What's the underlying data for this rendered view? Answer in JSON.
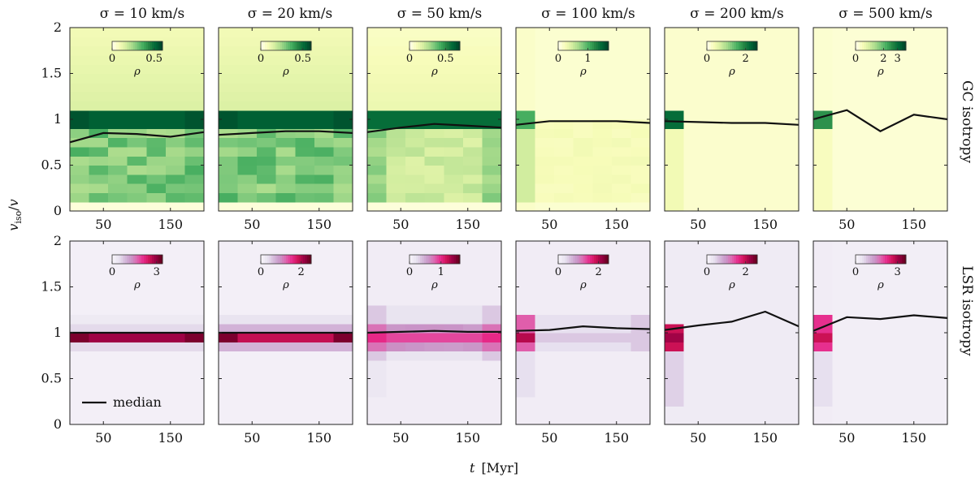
{
  "figure": {
    "xlabel": "t  [Myr]",
    "ylabel": "v_iso / v",
    "column_titles": [
      "σ = 10 km/s",
      "σ = 20 km/s",
      "σ = 50 km/s",
      "σ = 100 km/s",
      "σ = 200 km/s",
      "σ = 500 km/s"
    ],
    "row_labels": [
      "GC isotropy",
      "LSR isotropy"
    ],
    "legend_label": "median",
    "colorbar_label": "ρ"
  },
  "chart_data": {
    "type": "heatmap",
    "x_range": [
      0,
      200
    ],
    "y_range": [
      0,
      2
    ],
    "x_ticks": [
      50,
      150
    ],
    "y_ticks": [
      0,
      0.5,
      1,
      1.5,
      2
    ],
    "y_tick_labels": [
      "0",
      "0.5",
      "1",
      "1.5",
      "2"
    ],
    "colormaps": {
      "GC isotropy": [
        "#ffffe5",
        "#f7fcb9",
        "#d9f0a3",
        "#addd8e",
        "#78c679",
        "#41ab5d",
        "#238443",
        "#006837",
        "#004529"
      ],
      "LSR isotropy": [
        "#f7f4f9",
        "#e7e1ef",
        "#d4b9da",
        "#c994c7",
        "#df65b0",
        "#e7298a",
        "#ce1256",
        "#980043",
        "#67001f"
      ]
    },
    "median_t": [
      0,
      50,
      100,
      150,
      200
    ],
    "rows": [
      {
        "label": "GC isotropy",
        "panels": [
          {
            "sigma": "σ = 10 km/s",
            "cbar_ticks": [
              "0",
              "0.5"
            ],
            "cbar_max": 0.6,
            "median": [
              0.75,
              0.85,
              0.84,
              0.81,
              0.86
            ]
          },
          {
            "sigma": "σ = 20 km/s",
            "cbar_ticks": [
              "0",
              "0.5"
            ],
            "cbar_max": 0.6,
            "median": [
              0.83,
              0.85,
              0.87,
              0.87,
              0.85
            ]
          },
          {
            "sigma": "σ = 50 km/s",
            "cbar_ticks": [
              "0",
              "0.5"
            ],
            "cbar_max": 0.7,
            "median": [
              0.86,
              0.91,
              0.95,
              0.93,
              0.91
            ]
          },
          {
            "sigma": "σ = 100 km/s",
            "cbar_ticks": [
              "0",
              "1"
            ],
            "cbar_max": 1.7,
            "median": [
              0.94,
              0.98,
              0.98,
              0.98,
              0.96
            ]
          },
          {
            "sigma": "σ = 200 km/s",
            "cbar_ticks": [
              "0",
              "2"
            ],
            "cbar_max": 2.6,
            "median": [
              0.98,
              0.97,
              0.96,
              0.96,
              0.94
            ]
          },
          {
            "sigma": "σ = 500 km/s",
            "cbar_ticks": [
              "0",
              "2",
              "3"
            ],
            "cbar_max": 3.6,
            "median": [
              1.0,
              1.1,
              0.87,
              1.05,
              1.0
            ]
          }
        ]
      },
      {
        "label": "LSR isotropy",
        "panels": [
          {
            "sigma": "σ = 10 km/s",
            "cbar_ticks": [
              "0",
              "3"
            ],
            "cbar_max": 3.4,
            "median": [
              1.0,
              1.0,
              1.0,
              1.0,
              1.0
            ]
          },
          {
            "sigma": "σ = 20 km/s",
            "cbar_ticks": [
              "0",
              "2"
            ],
            "cbar_max": 2.5,
            "median": [
              1.0,
              1.0,
              1.0,
              1.0,
              1.0
            ]
          },
          {
            "sigma": "σ = 50 km/s",
            "cbar_ticks": [
              "0",
              "1"
            ],
            "cbar_max": 1.6,
            "median": [
              1.0,
              1.01,
              1.02,
              1.01,
              1.01
            ]
          },
          {
            "sigma": "σ = 100 km/s",
            "cbar_ticks": [
              "0",
              "2"
            ],
            "cbar_max": 2.5,
            "median": [
              1.02,
              1.03,
              1.07,
              1.05,
              1.04
            ]
          },
          {
            "sigma": "σ = 200 km/s",
            "cbar_ticks": [
              "0",
              "2"
            ],
            "cbar_max": 2.6,
            "median": [
              1.03,
              1.08,
              1.12,
              1.23,
              1.07
            ]
          },
          {
            "sigma": "σ = 500 km/s",
            "cbar_ticks": [
              "0",
              "3"
            ],
            "cbar_max": 3.6,
            "median": [
              1.02,
              1.17,
              1.15,
              1.19,
              1.16
            ]
          }
        ]
      }
    ]
  }
}
